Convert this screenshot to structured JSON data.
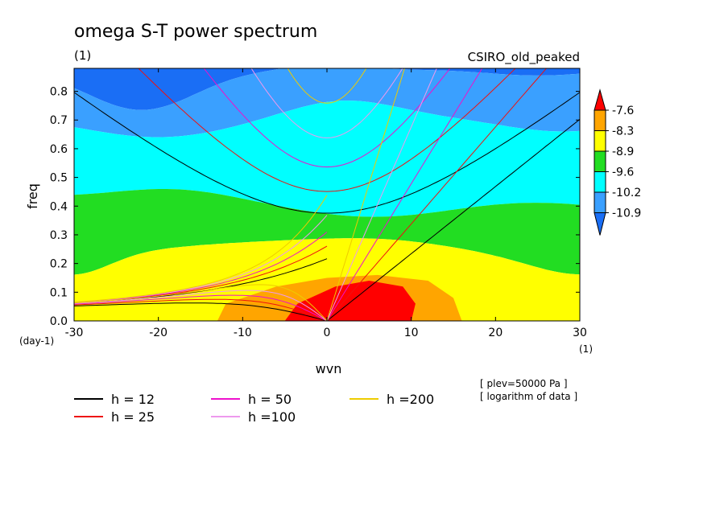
{
  "chart_data": {
    "type": "heatmap",
    "title": "omega S-T power spectrum",
    "subtitle": "(1)",
    "model_label": "CSIRO_old_peaked",
    "xlabel": "wvn",
    "ylabel": "freq",
    "x_unit": "(1)",
    "y_unit": "(day-1)",
    "xlim": [
      -30,
      30
    ],
    "ylim": [
      0,
      0.88
    ],
    "x_ticks": [
      "-30",
      "-20",
      "-10",
      "0",
      "10",
      "20",
      "30"
    ],
    "y_ticks": [
      "0.0",
      "0.1",
      "0.2",
      "0.3",
      "0.4",
      "0.5",
      "0.6",
      "0.7",
      "0.8"
    ],
    "colorbar": {
      "labels": [
        "-7.6",
        "-8.3",
        "-8.9",
        "-9.6",
        "-10.2",
        "-10.9"
      ],
      "colors": [
        "#1a6ef5",
        "#3aa0ff",
        "#00ffff",
        "#22dd22",
        "#ffff00",
        "#ffa500",
        "#ff0000"
      ]
    },
    "bands": [
      {
        "value": "-10.9",
        "color": "#1a6ef5"
      },
      {
        "value": "-10.2",
        "color": "#3aa0ff"
      },
      {
        "value": "-9.6",
        "color": "#00ffff"
      },
      {
        "value": "-8.9",
        "color": "#22dd22"
      },
      {
        "value": "-8.3",
        "color": "#ffff00"
      },
      {
        "value": "-7.6",
        "color": "#ffa500"
      },
      {
        "value": "max",
        "color": "#ff0000"
      }
    ],
    "dispersion_curves": [
      {
        "name": "h = 12",
        "h": 12,
        "color": "#000000"
      },
      {
        "name": "h = 25",
        "h": 25,
        "color": "#ee1111"
      },
      {
        "name": "h = 50",
        "h": 50,
        "color": "#ee11cc"
      },
      {
        "name": "h =100",
        "h": 100,
        "color": "#ee99ee"
      },
      {
        "name": "h =200",
        "h": 200,
        "color": "#eecc00"
      }
    ],
    "notes": [
      "[ plev=50000 Pa ]",
      "[ logarithm of data ]"
    ]
  }
}
